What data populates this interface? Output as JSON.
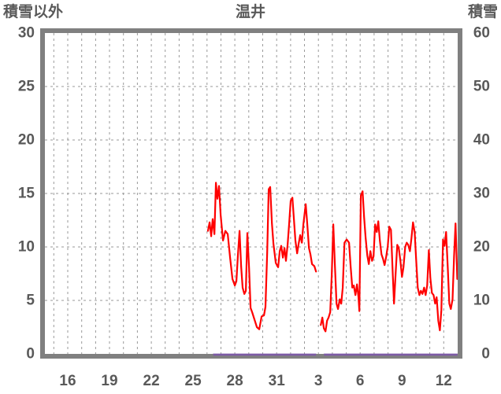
{
  "header": {
    "left_axis_title": "積雪以外",
    "station_title": "温井",
    "right_axis_title": "積雪"
  },
  "colors": {
    "series_other": "#ff0000",
    "series_snow": "#7d5ba6",
    "frame": "#808080",
    "grid": "#9a9a9a",
    "label": "#595959",
    "background": "#ffffff"
  },
  "chart_data": {
    "type": "line",
    "title": "温井",
    "left_axis": {
      "label": "積雪以外",
      "min": 0,
      "max": 30,
      "ticks": [
        0,
        5,
        10,
        15,
        20,
        25,
        30
      ]
    },
    "right_axis": {
      "label": "積雪",
      "min": 0,
      "max": 60,
      "ticks": [
        0,
        10,
        20,
        30,
        40,
        50,
        60
      ]
    },
    "x_axis": {
      "note": "day axis, continuous numbering: 16..31 = Dec 16-31, 32..44 = Jan 1-13",
      "day_min": 14.36,
      "day_max": 44.0,
      "tick_days": [
        16,
        19,
        22,
        25,
        28,
        31,
        34,
        37,
        40,
        43
      ],
      "tick_labels": [
        "16",
        "19",
        "22",
        "25",
        "28",
        "31",
        "3",
        "6",
        "9",
        "12"
      ],
      "gridline_day_start": 15,
      "gridline_day_end": 43,
      "grid": true
    },
    "series": [
      {
        "name": "積雪以外",
        "axis": "left",
        "color": "#ff0000",
        "width": 2.2,
        "segments": [
          [
            [
              26.07,
              11.5
            ],
            [
              26.19,
              12.3
            ],
            [
              26.3,
              11.0
            ],
            [
              26.41,
              12.6
            ],
            [
              26.53,
              11.2
            ],
            [
              26.64,
              16.0
            ],
            [
              26.75,
              14.5
            ],
            [
              26.86,
              15.7
            ],
            [
              26.98,
              13.0
            ],
            [
              27.15,
              10.6
            ],
            [
              27.32,
              11.5
            ],
            [
              27.49,
              11.2
            ],
            [
              27.66,
              9.0
            ],
            [
              27.83,
              7.0
            ],
            [
              28.0,
              6.4
            ],
            [
              28.11,
              6.8
            ],
            [
              28.22,
              9.2
            ],
            [
              28.34,
              11.5
            ],
            [
              28.45,
              8.2
            ],
            [
              28.56,
              6.2
            ],
            [
              28.68,
              5.6
            ],
            [
              28.79,
              5.9
            ],
            [
              28.9,
              11.3
            ],
            [
              29.02,
              8.0
            ],
            [
              29.13,
              4.3
            ],
            [
              29.24,
              3.9
            ],
            [
              29.41,
              3.2
            ],
            [
              29.58,
              2.5
            ],
            [
              29.75,
              2.3
            ],
            [
              29.92,
              3.5
            ],
            [
              30.09,
              3.6
            ],
            [
              30.2,
              4.4
            ],
            [
              30.32,
              9.5
            ],
            [
              30.43,
              15.4
            ],
            [
              30.54,
              15.6
            ],
            [
              30.66,
              12.2
            ],
            [
              30.77,
              10.3
            ],
            [
              30.94,
              8.5
            ],
            [
              31.11,
              8.1
            ],
            [
              31.22,
              9.6
            ],
            [
              31.33,
              10.1
            ],
            [
              31.45,
              9.0
            ],
            [
              31.56,
              9.9
            ],
            [
              31.67,
              8.7
            ],
            [
              31.79,
              10.2
            ],
            [
              31.9,
              12.2
            ],
            [
              32.01,
              14.3
            ],
            [
              32.13,
              14.6
            ],
            [
              32.24,
              12.6
            ],
            [
              32.35,
              10.6
            ],
            [
              32.47,
              9.4
            ],
            [
              32.58,
              10.3
            ],
            [
              32.69,
              11.1
            ],
            [
              32.81,
              10.4
            ],
            [
              32.92,
              12.1
            ],
            [
              33.09,
              14.0
            ],
            [
              33.2,
              12.1
            ],
            [
              33.32,
              9.9
            ],
            [
              33.43,
              9.3
            ],
            [
              33.54,
              8.4
            ],
            [
              33.71,
              8.2
            ],
            [
              33.83,
              7.7
            ]
          ],
          [
            [
              34.17,
              2.7
            ],
            [
              34.28,
              3.4
            ],
            [
              34.39,
              2.4
            ],
            [
              34.51,
              2.1
            ],
            [
              34.62,
              3.1
            ],
            [
              34.73,
              3.4
            ],
            [
              34.85,
              3.9
            ],
            [
              34.96,
              7.5
            ],
            [
              35.07,
              12.1
            ],
            [
              35.19,
              8.2
            ],
            [
              35.3,
              4.7
            ],
            [
              35.41,
              4.2
            ],
            [
              35.53,
              5.1
            ],
            [
              35.64,
              4.7
            ],
            [
              35.75,
              6.2
            ],
            [
              35.87,
              10.4
            ],
            [
              36.03,
              10.7
            ],
            [
              36.2,
              10.4
            ],
            [
              36.32,
              8.1
            ],
            [
              36.43,
              6.2
            ],
            [
              36.54,
              6.4
            ],
            [
              36.66,
              5.5
            ],
            [
              36.77,
              6.5
            ],
            [
              36.88,
              5.3
            ],
            [
              36.94,
              4.0
            ],
            [
              37.05,
              14.8
            ],
            [
              37.17,
              15.2
            ],
            [
              37.28,
              12.8
            ],
            [
              37.39,
              10.9
            ],
            [
              37.51,
              9.2
            ],
            [
              37.62,
              8.4
            ],
            [
              37.73,
              9.6
            ],
            [
              37.85,
              8.7
            ],
            [
              37.96,
              9.1
            ],
            [
              38.07,
              12.1
            ],
            [
              38.19,
              11.4
            ],
            [
              38.3,
              12.4
            ],
            [
              38.41,
              10.6
            ],
            [
              38.53,
              9.3
            ],
            [
              38.64,
              8.9
            ],
            [
              38.75,
              8.3
            ],
            [
              38.87,
              9.1
            ],
            [
              38.98,
              10.1
            ],
            [
              39.09,
              11.9
            ],
            [
              39.21,
              11.6
            ],
            [
              39.32,
              8.0
            ],
            [
              39.43,
              4.7
            ],
            [
              39.55,
              7.6
            ],
            [
              39.66,
              10.2
            ],
            [
              39.77,
              9.9
            ],
            [
              39.89,
              8.7
            ],
            [
              40.0,
              7.2
            ],
            [
              40.11,
              8.1
            ],
            [
              40.23,
              10.0
            ],
            [
              40.34,
              10.4
            ],
            [
              40.45,
              10.2
            ],
            [
              40.57,
              9.6
            ],
            [
              40.68,
              10.8
            ],
            [
              40.79,
              12.3
            ],
            [
              40.91,
              11.4
            ],
            [
              41.02,
              8.8
            ],
            [
              41.13,
              6.2
            ],
            [
              41.25,
              5.5
            ],
            [
              41.36,
              5.9
            ],
            [
              41.47,
              5.6
            ],
            [
              41.59,
              6.2
            ],
            [
              41.7,
              5.5
            ],
            [
              41.81,
              6.4
            ],
            [
              41.93,
              9.7
            ],
            [
              42.04,
              7.1
            ],
            [
              42.15,
              5.7
            ],
            [
              42.27,
              5.5
            ],
            [
              42.38,
              4.7
            ],
            [
              42.49,
              5.3
            ],
            [
              42.61,
              3.1
            ],
            [
              42.72,
              2.2
            ],
            [
              42.83,
              4.1
            ],
            [
              42.95,
              10.7
            ],
            [
              43.06,
              10.1
            ],
            [
              43.17,
              11.4
            ],
            [
              43.29,
              8.1
            ],
            [
              43.4,
              4.7
            ],
            [
              43.51,
              4.2
            ],
            [
              43.63,
              5.1
            ],
            [
              43.74,
              9.1
            ],
            [
              43.85,
              12.2
            ],
            [
              43.97,
              7.0
            ]
          ]
        ]
      },
      {
        "name": "積雪",
        "axis": "right",
        "color": "#7d5ba6",
        "width": 2.4,
        "segments": [
          [
            [
              26.45,
              0
            ],
            [
              33.83,
              0
            ]
          ],
          [
            [
              34.4,
              0
            ],
            [
              43.99,
              0
            ]
          ]
        ]
      }
    ],
    "legend_position": "none"
  }
}
